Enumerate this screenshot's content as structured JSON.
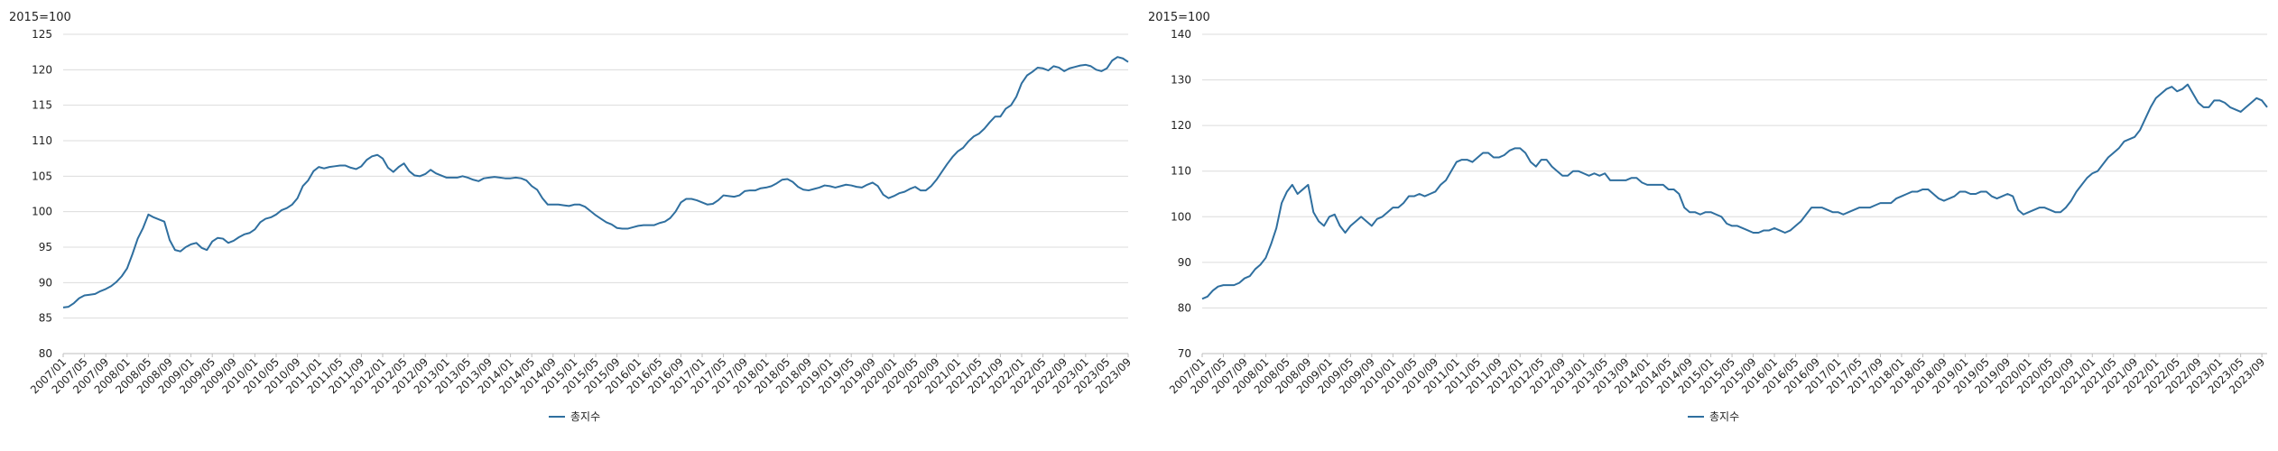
{
  "colors": {
    "series": "#2f6f9f",
    "grid": "#dcdcdc",
    "axis": "#bdbdbd",
    "text": "#222222"
  },
  "x_tick_labels": [
    "2007/01",
    "2007/05",
    "2007/09",
    "2008/01",
    "2008/05",
    "2008/09",
    "2009/01",
    "2009/05",
    "2009/09",
    "2010/01",
    "2010/05",
    "2010/09",
    "2011/01",
    "2011/05",
    "2011/09",
    "2012/01",
    "2012/05",
    "2012/09",
    "2013/01",
    "2013/05",
    "2013/09",
    "2014/01",
    "2014/05",
    "2014/09",
    "2015/01",
    "2015/05",
    "2015/09",
    "2016/01",
    "2016/05",
    "2016/09",
    "2017/01",
    "2017/05",
    "2017/09",
    "2018/01",
    "2018/05",
    "2018/09",
    "2019/01",
    "2019/05",
    "2019/09",
    "2020/01",
    "2020/05",
    "2020/09",
    "2021/01",
    "2021/05",
    "2021/09",
    "2022/01",
    "2022/05",
    "2022/09",
    "2023/01",
    "2023/05",
    "2023/09"
  ],
  "chart_data": [
    {
      "type": "line",
      "unit_label": "2015=100",
      "ylim": [
        80,
        125
      ],
      "y_ticks": [
        80,
        85,
        90,
        95,
        100,
        105,
        110,
        115,
        120,
        125
      ],
      "grid": true,
      "legend_position": "bottom-center",
      "series": [
        {
          "name": "총지수",
          "x_start": "2007/01",
          "x_end": "2023/12",
          "frequency": "monthly",
          "values": [
            86.5,
            86.6,
            87.1,
            87.8,
            88.2,
            88.3,
            88.4,
            88.8,
            89.1,
            89.5,
            90.1,
            90.9,
            92.0,
            94.0,
            96.2,
            97.7,
            99.6,
            99.2,
            98.9,
            98.6,
            96.0,
            94.6,
            94.4,
            95.0,
            95.4,
            95.6,
            94.9,
            94.6,
            95.8,
            96.3,
            96.2,
            95.6,
            95.9,
            96.4,
            96.8,
            97.0,
            97.5,
            98.5,
            99.0,
            99.2,
            99.6,
            100.2,
            100.5,
            101.0,
            101.9,
            103.6,
            104.4,
            105.7,
            106.3,
            106.1,
            106.3,
            106.4,
            106.5,
            106.5,
            106.2,
            106.0,
            106.4,
            107.3,
            107.8,
            108.0,
            107.5,
            106.2,
            105.6,
            106.3,
            106.8,
            105.7,
            105.1,
            105.0,
            105.3,
            105.9,
            105.4,
            105.1,
            104.8,
            104.8,
            104.8,
            105.0,
            104.8,
            104.5,
            104.3,
            104.7,
            104.8,
            104.9,
            104.8,
            104.7,
            104.7,
            104.8,
            104.7,
            104.4,
            103.6,
            103.1,
            101.9,
            101.0,
            101.0,
            101.0,
            100.9,
            100.8,
            101.0,
            101.0,
            100.7,
            100.1,
            99.5,
            99.0,
            98.5,
            98.2,
            97.7,
            97.6,
            97.6,
            97.8,
            98.0,
            98.1,
            98.1,
            98.1,
            98.4,
            98.6,
            99.1,
            100.0,
            101.3,
            101.8,
            101.8,
            101.6,
            101.3,
            101.0,
            101.1,
            101.6,
            102.3,
            102.2,
            102.1,
            102.3,
            102.9,
            103.0,
            103.0,
            103.3,
            103.4,
            103.6,
            104.0,
            104.5,
            104.6,
            104.2,
            103.5,
            103.1,
            103.0,
            103.2,
            103.4,
            103.7,
            103.6,
            103.4,
            103.6,
            103.8,
            103.7,
            103.5,
            103.4,
            103.8,
            104.1,
            103.6,
            102.4,
            101.9,
            102.2,
            102.6,
            102.8,
            103.2,
            103.5,
            103.0,
            103.0,
            103.6,
            104.5,
            105.6,
            106.7,
            107.7,
            108.5,
            109.0,
            109.9,
            110.6,
            111.0,
            111.7,
            112.6,
            113.4,
            113.4,
            114.5,
            115.0,
            116.2,
            118.1,
            119.2,
            119.7,
            120.3,
            120.2,
            119.9,
            120.5,
            120.3,
            119.8,
            120.2,
            120.4,
            120.6,
            120.7,
            120.5,
            120.0,
            119.8,
            120.2,
            121.3,
            121.8,
            121.6,
            121.1
          ]
        }
      ]
    },
    {
      "type": "line",
      "unit_label": "2015=100",
      "ylim": [
        70,
        140
      ],
      "y_ticks": [
        70,
        80,
        90,
        100,
        110,
        120,
        130,
        140
      ],
      "grid": true,
      "legend_position": "bottom-center",
      "series": [
        {
          "name": "총지수",
          "x_start": "2007/01",
          "x_end": "2023/12",
          "frequency": "monthly",
          "values": [
            82.0,
            82.5,
            83.8,
            84.7,
            85.0,
            85.0,
            85.0,
            85.5,
            86.5,
            87.0,
            88.5,
            89.5,
            91.0,
            94.0,
            97.5,
            103.0,
            105.5,
            107.0,
            105.0,
            106.0,
            107.0,
            101.0,
            99.0,
            98.0,
            100.0,
            100.5,
            98.0,
            96.5,
            98.0,
            99.0,
            100.0,
            99.0,
            98.0,
            99.5,
            100.0,
            101.0,
            102.0,
            102.0,
            103.0,
            104.5,
            104.5,
            105.0,
            104.5,
            105.0,
            105.5,
            107.0,
            108.0,
            110.0,
            112.0,
            112.5,
            112.5,
            112.0,
            113.0,
            114.0,
            114.0,
            113.0,
            113.0,
            113.5,
            114.5,
            115.0,
            115.0,
            114.0,
            112.0,
            111.0,
            112.5,
            112.5,
            111.0,
            110.0,
            109.0,
            109.0,
            110.0,
            110.0,
            109.5,
            109.0,
            109.5,
            109.0,
            109.5,
            108.0,
            108.0,
            108.0,
            108.0,
            108.5,
            108.5,
            107.5,
            107.0,
            107.0,
            107.0,
            107.0,
            106.0,
            106.0,
            105.0,
            102.0,
            101.0,
            101.0,
            100.5,
            101.0,
            101.0,
            100.5,
            100.0,
            98.5,
            98.0,
            98.0,
            97.5,
            97.0,
            96.5,
            96.5,
            97.0,
            97.0,
            97.5,
            97.0,
            96.5,
            97.0,
            98.0,
            99.0,
            100.5,
            102.0,
            102.0,
            102.0,
            101.5,
            101.0,
            101.0,
            100.5,
            101.0,
            101.5,
            102.0,
            102.0,
            102.0,
            102.5,
            103.0,
            103.0,
            103.0,
            104.0,
            104.5,
            105.0,
            105.5,
            105.5,
            106.0,
            106.0,
            105.0,
            104.0,
            103.5,
            104.0,
            104.5,
            105.5,
            105.5,
            105.0,
            105.0,
            105.5,
            105.5,
            104.5,
            104.0,
            104.5,
            105.0,
            104.5,
            101.5,
            100.5,
            101.0,
            101.5,
            102.0,
            102.0,
            101.5,
            101.0,
            101.0,
            102.0,
            103.5,
            105.5,
            107.0,
            108.5,
            109.5,
            110.0,
            111.5,
            113.0,
            114.0,
            115.0,
            116.5,
            117.0,
            117.5,
            119.0,
            121.5,
            124.0,
            126.0,
            127.0,
            128.0,
            128.5,
            127.5,
            128.0,
            129.0,
            127.0,
            125.0,
            124.0,
            124.0,
            125.5,
            125.5,
            125.0,
            124.0,
            123.5,
            123.0,
            124.0,
            125.0,
            126.0,
            125.5,
            124.0
          ]
        }
      ]
    }
  ]
}
